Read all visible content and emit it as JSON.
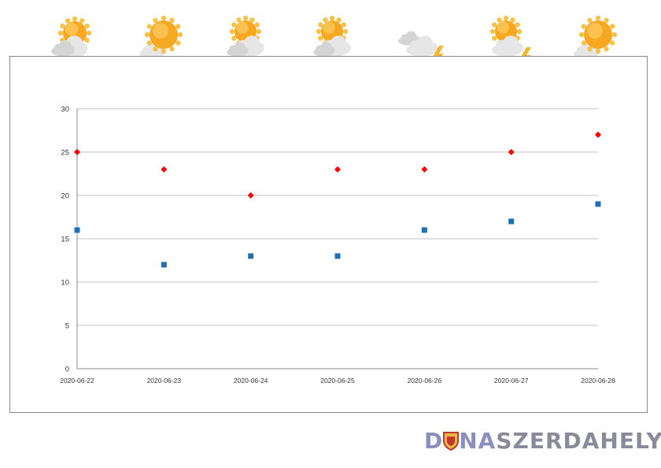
{
  "weather_icons": [
    {
      "date": "2020-06-22",
      "icon": "partly-cloudy-icon"
    },
    {
      "date": "2020-06-23",
      "icon": "sunny-with-cloud-icon"
    },
    {
      "date": "2020-06-24",
      "icon": "sun-cloud-rain-icon"
    },
    {
      "date": "2020-06-25",
      "icon": "sun-cloud-rain-icon"
    },
    {
      "date": "2020-06-26",
      "icon": "cloud-thunder-icon"
    },
    {
      "date": "2020-06-27",
      "icon": "sun-cloud-rain-thunder-icon"
    },
    {
      "date": "2020-06-28",
      "icon": "sunny-with-cloud-icon"
    }
  ],
  "colors": {
    "max_marker": "#ff0000",
    "min_marker": "#1f6fb5",
    "grid": "#c0c0c0",
    "axis": "#8c8c8c",
    "sun": "#f7a823",
    "cloud": "#e6e6e6",
    "rain": "#4a90d9",
    "lightning": "#f5b731"
  },
  "chart_data": {
    "type": "scatter",
    "x": [
      "2020-06-22",
      "2020-06-23",
      "2020-06-24",
      "2020-06-25",
      "2020-06-26",
      "2020-06-27",
      "2020-06-28"
    ],
    "series": [
      {
        "values": [
          25,
          23,
          20,
          23,
          23,
          25,
          27
        ],
        "marker": "diamond",
        "color": "#ff0000"
      },
      {
        "values": [
          16,
          12,
          13,
          13,
          16,
          17,
          19
        ],
        "marker": "square",
        "color": "#1f6fb5"
      }
    ],
    "ylim": [
      0,
      30
    ],
    "yticks": [
      0,
      5,
      10,
      15,
      20,
      25,
      30
    ],
    "grid": true,
    "legend": "none"
  },
  "brand": {
    "part1": "D",
    "part2": "NA",
    "part3": "SZERDAHELYI"
  }
}
